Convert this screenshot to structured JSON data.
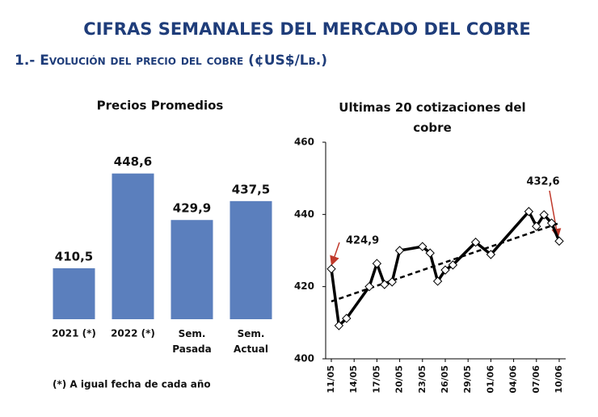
{
  "header": {
    "title": "CIFRAS SEMANALES DEL MERCADO DEL COBRE",
    "subtitle": "1.- Evolución del precio del cobre (¢US$/Lb.)"
  },
  "chart_data": [
    {
      "type": "bar",
      "title": "Precios Promedios",
      "categories": [
        "2021 (*)",
        "2022 (*)",
        "Sem.\nPasada",
        "Sem.\nActual"
      ],
      "values": [
        410.5,
        448.6,
        429.9,
        437.5
      ],
      "value_labels": [
        "410,5",
        "448,6",
        "429,9",
        "437,5"
      ],
      "color": "#5b7fbd",
      "ylim": [
        390,
        455
      ],
      "footnote": "(*) A igual fecha de cada año"
    },
    {
      "type": "line",
      "title": "Ultimas 20 cotizaciones del cobre",
      "x": [
        0,
        1,
        2,
        5,
        6,
        7,
        8,
        9,
        12,
        13,
        14,
        15,
        16,
        19,
        21,
        26,
        27,
        28,
        29,
        30
      ],
      "values": [
        424.9,
        409.2,
        411.2,
        420.0,
        426.4,
        420.6,
        421.3,
        430.0,
        431.1,
        429.3,
        421.5,
        424.6,
        426.0,
        432.3,
        428.9,
        440.8,
        436.7,
        439.9,
        437.6,
        432.6
      ],
      "value_labels": [
        "424,9",
        null,
        null,
        null,
        null,
        null,
        null,
        null,
        null,
        null,
        null,
        null,
        null,
        null,
        null,
        null,
        null,
        null,
        null,
        "432,6"
      ],
      "color": "#000000",
      "trend": {
        "x": [
          0,
          30
        ],
        "values": [
          415.9,
          437.6
        ],
        "color": "#000000"
      },
      "xlim": [
        0,
        30
      ],
      "xticks": [
        {
          "value": 0,
          "label": "11/05"
        },
        {
          "value": 3,
          "label": "14/05"
        },
        {
          "value": 6,
          "label": "17/05"
        },
        {
          "value": 9,
          "label": "20/05"
        },
        {
          "value": 12,
          "label": "23/05"
        },
        {
          "value": 15,
          "label": "26/05"
        },
        {
          "value": 18,
          "label": "29/05"
        },
        {
          "value": 21,
          "label": "01/06"
        },
        {
          "value": 24,
          "label": "04/06"
        },
        {
          "value": 27,
          "label": "07/06"
        },
        {
          "value": 30,
          "label": "10/06"
        }
      ],
      "ylim": [
        400,
        460
      ],
      "yticks": [
        400,
        420,
        440,
        460
      ]
    }
  ]
}
